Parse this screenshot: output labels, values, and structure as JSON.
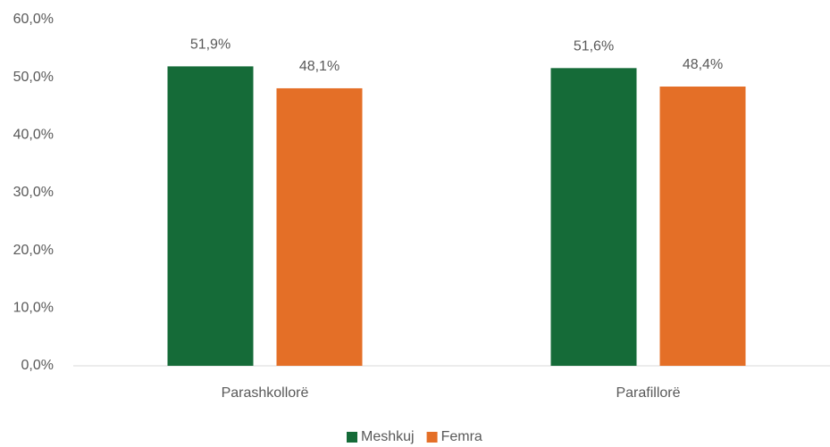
{
  "chart_data": {
    "type": "bar",
    "categories": [
      "Parashkollorë",
      "Parafillorë"
    ],
    "series": [
      {
        "name": "Meshkuj",
        "color": "#156b38",
        "values": [
          51.9,
          51.6
        ],
        "value_labels": [
          "51,9%",
          "51,6%"
        ]
      },
      {
        "name": "Femra",
        "color": "#e46f27",
        "values": [
          48.1,
          48.4
        ],
        "value_labels": [
          "48,1%",
          "48,4%"
        ]
      }
    ],
    "ylim": [
      0,
      60
    ],
    "yticks": [
      {
        "value": 0,
        "label": "0,0%"
      },
      {
        "value": 10,
        "label": "10,0%"
      },
      {
        "value": 20,
        "label": "20,0%"
      },
      {
        "value": 30,
        "label": "30,0%"
      },
      {
        "value": 40,
        "label": "40,0%"
      },
      {
        "value": 50,
        "label": "50,0%"
      },
      {
        "value": 60,
        "label": "60,0%"
      }
    ],
    "grid": false,
    "legend": "bottom"
  }
}
